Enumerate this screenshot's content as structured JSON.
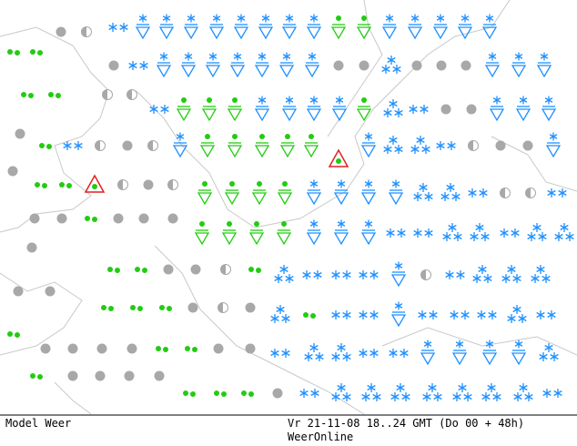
{
  "footer": {
    "left": "Model Weer",
    "right": "Vr 21-11-08 18..24 GMT (Do 00 + 48h)",
    "source": "WeerOnline"
  }
}
